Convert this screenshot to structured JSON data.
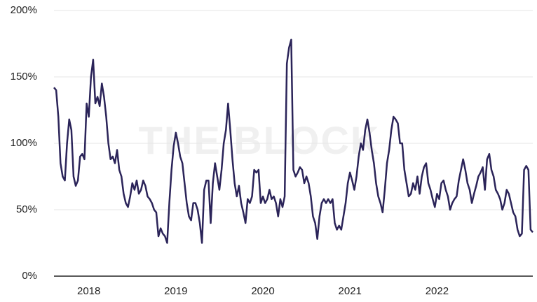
{
  "chart_data": {
    "type": "line",
    "watermark": "THE BLOCK",
    "color": "#2b2459",
    "grid": true,
    "xlim": [
      2017.6,
      2023.1
    ],
    "xticks": [
      2018,
      2019,
      2020,
      2021,
      2022
    ],
    "ylim": [
      0,
      200
    ],
    "yticks": [
      {
        "value": 0,
        "label": "0%"
      },
      {
        "value": 50,
        "label": "50%"
      },
      {
        "value": 100,
        "label": "100%"
      },
      {
        "value": 150,
        "label": "150%"
      },
      {
        "value": 200,
        "label": "200%"
      }
    ],
    "x": [
      2017.6,
      2017.625,
      2017.65,
      2017.675,
      2017.7,
      2017.725,
      2017.75,
      2017.775,
      2017.8,
      2017.825,
      2017.85,
      2017.875,
      2017.9,
      2017.925,
      2017.95,
      2017.975,
      2018,
      2018.025,
      2018.05,
      2018.075,
      2018.1,
      2018.125,
      2018.15,
      2018.175,
      2018.2,
      2018.225,
      2018.25,
      2018.275,
      2018.3,
      2018.325,
      2018.35,
      2018.375,
      2018.4,
      2018.425,
      2018.45,
      2018.475,
      2018.5,
      2018.525,
      2018.55,
      2018.575,
      2018.6,
      2018.625,
      2018.65,
      2018.675,
      2018.7,
      2018.725,
      2018.75,
      2018.775,
      2018.8,
      2018.825,
      2018.85,
      2018.875,
      2018.9,
      2018.925,
      2018.95,
      2018.975,
      2019,
      2019.025,
      2019.05,
      2019.075,
      2019.1,
      2019.125,
      2019.15,
      2019.175,
      2019.2,
      2019.225,
      2019.25,
      2019.275,
      2019.3,
      2019.325,
      2019.35,
      2019.375,
      2019.4,
      2019.425,
      2019.45,
      2019.475,
      2019.5,
      2019.525,
      2019.55,
      2019.575,
      2019.6,
      2019.625,
      2019.65,
      2019.675,
      2019.7,
      2019.725,
      2019.75,
      2019.775,
      2019.8,
      2019.825,
      2019.85,
      2019.875,
      2019.9,
      2019.925,
      2019.95,
      2019.975,
      2020,
      2020.025,
      2020.05,
      2020.075,
      2020.1,
      2020.125,
      2020.15,
      2020.175,
      2020.2,
      2020.225,
      2020.25,
      2020.275,
      2020.3,
      2020.325,
      2020.35,
      2020.375,
      2020.4,
      2020.425,
      2020.45,
      2020.475,
      2020.5,
      2020.525,
      2020.55,
      2020.575,
      2020.6,
      2020.625,
      2020.65,
      2020.675,
      2020.7,
      2020.725,
      2020.75,
      2020.775,
      2020.8,
      2020.825,
      2020.85,
      2020.875,
      2020.9,
      2020.925,
      2020.95,
      2020.975,
      2021,
      2021.025,
      2021.05,
      2021.075,
      2021.1,
      2021.125,
      2021.15,
      2021.175,
      2021.2,
      2021.225,
      2021.25,
      2021.275,
      2021.3,
      2021.325,
      2021.35,
      2021.375,
      2021.4,
      2021.425,
      2021.45,
      2021.475,
      2021.5,
      2021.525,
      2021.55,
      2021.575,
      2021.6,
      2021.625,
      2021.65,
      2021.675,
      2021.7,
      2021.725,
      2021.75,
      2021.775,
      2021.8,
      2021.825,
      2021.85,
      2021.875,
      2021.9,
      2021.925,
      2021.95,
      2021.975,
      2022,
      2022.025,
      2022.05,
      2022.075,
      2022.1,
      2022.125,
      2022.15,
      2022.175,
      2022.2,
      2022.225,
      2022.25,
      2022.275,
      2022.3,
      2022.325,
      2022.35,
      2022.375,
      2022.4,
      2022.425,
      2022.45,
      2022.475,
      2022.5,
      2022.525,
      2022.55,
      2022.575,
      2022.6,
      2022.625,
      2022.65,
      2022.675,
      2022.7,
      2022.725,
      2022.75,
      2022.775,
      2022.8,
      2022.825,
      2022.85,
      2022.875,
      2022.9,
      2022.925,
      2022.95,
      2022.975,
      2023,
      2023.025,
      2023.05,
      2023.075,
      2023.1
    ],
    "values": [
      142,
      140,
      120,
      85,
      75,
      72,
      100,
      118,
      110,
      75,
      68,
      72,
      90,
      92,
      88,
      130,
      120,
      150,
      163,
      130,
      135,
      128,
      145,
      135,
      120,
      100,
      88,
      90,
      85,
      95,
      80,
      75,
      62,
      55,
      52,
      60,
      70,
      65,
      72,
      62,
      65,
      72,
      68,
      60,
      58,
      55,
      50,
      48,
      30,
      36,
      32,
      30,
      25,
      55,
      80,
      98,
      108,
      100,
      90,
      85,
      70,
      55,
      45,
      42,
      55,
      55,
      50,
      40,
      25,
      65,
      72,
      72,
      40,
      70,
      85,
      75,
      65,
      80,
      100,
      110,
      130,
      110,
      88,
      70,
      60,
      68,
      55,
      48,
      40,
      58,
      55,
      60,
      80,
      78,
      80,
      55,
      60,
      55,
      58,
      65,
      58,
      60,
      55,
      45,
      58,
      52,
      60,
      160,
      172,
      178,
      80,
      75,
      78,
      82,
      80,
      70,
      75,
      70,
      60,
      45,
      40,
      28,
      45,
      55,
      58,
      55,
      58,
      55,
      58,
      40,
      35,
      38,
      35,
      45,
      55,
      70,
      78,
      72,
      65,
      75,
      90,
      100,
      95,
      110,
      118,
      108,
      95,
      85,
      70,
      60,
      55,
      48,
      65,
      85,
      95,
      110,
      120,
      118,
      115,
      100,
      100,
      80,
      70,
      60,
      62,
      70,
      65,
      75,
      62,
      75,
      82,
      85,
      70,
      65,
      58,
      52,
      62,
      58,
      70,
      72,
      65,
      60,
      50,
      55,
      58,
      60,
      72,
      80,
      88,
      80,
      70,
      65,
      55,
      62,
      68,
      75,
      78,
      82,
      65,
      88,
      92,
      80,
      75,
      65,
      62,
      58,
      50,
      55,
      65,
      62,
      55,
      48,
      45,
      35,
      30,
      32,
      80,
      83,
      80,
      35,
      33
    ]
  }
}
